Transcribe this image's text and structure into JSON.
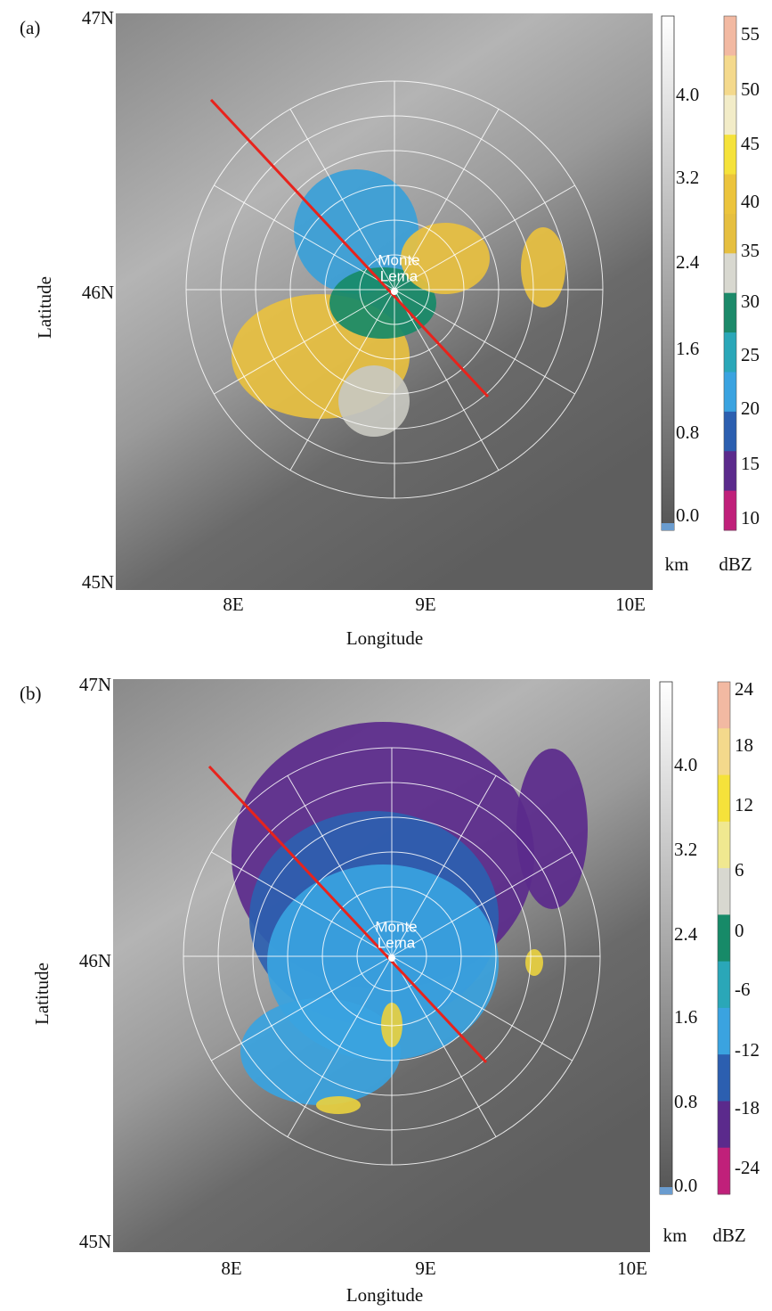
{
  "panels": [
    {
      "label": "(a)",
      "lat_labels": [
        "47N",
        "46N",
        "45N"
      ],
      "lon_labels": [
        "8E",
        "9E",
        "10E"
      ],
      "x_axis_label": "Longitude",
      "y_axis_label": "Latitude",
      "site_label": [
        "Monte",
        "Lema"
      ],
      "height_scale": {
        "ticks": [
          "4.0",
          "3.2",
          "2.4",
          "1.6",
          "0.8",
          "0.0"
        ],
        "unit": "km"
      },
      "reflectivity_scale": {
        "ticks": [
          "55",
          "50",
          "45",
          "40",
          "35",
          "30",
          "25",
          "20",
          "15",
          "10"
        ],
        "unit": "dBZ"
      }
    },
    {
      "label": "(b)",
      "lat_labels": [
        "47N",
        "46N",
        "45N"
      ],
      "lon_labels": [
        "8E",
        "9E",
        "10E"
      ],
      "x_axis_label": "Longitude",
      "y_axis_label": "Latitude",
      "site_label": [
        "Monte",
        "Lema"
      ],
      "height_scale": {
        "ticks": [
          "4.0",
          "3.2",
          "2.4",
          "1.6",
          "0.8",
          "0.0"
        ],
        "unit": "km"
      },
      "reflectivity_scale": {
        "ticks": [
          "24",
          "18",
          "12",
          "6",
          "0",
          "-6",
          "-12",
          "-18",
          "-24"
        ],
        "unit": "dBZ"
      }
    }
  ]
}
